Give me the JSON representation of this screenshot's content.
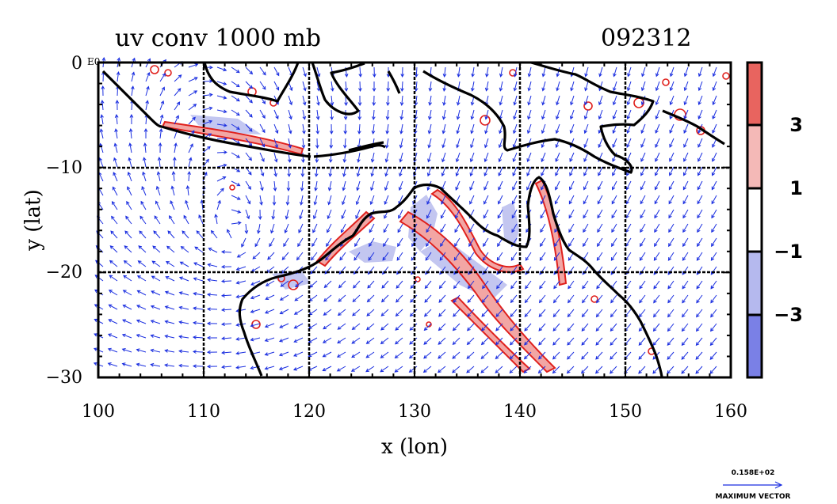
{
  "title": "uv conv 1000 mb",
  "date_label": "092312",
  "x_axis": {
    "label": "x (lon)",
    "min": 100,
    "max": 160,
    "ticks": [
      100,
      110,
      120,
      130,
      140,
      150,
      160
    ],
    "tick_labels": [
      "100",
      "110",
      "120",
      "130",
      "140",
      "150",
      "160"
    ]
  },
  "y_axis": {
    "label": "y (lat)",
    "min": -30,
    "max": 0,
    "ticks": [
      0,
      -10,
      -20,
      -30
    ],
    "tick_labels": [
      "0",
      "−10",
      "−20",
      "−30"
    ]
  },
  "corner_mark": "E0",
  "colorbar": {
    "labels": [
      "3",
      "1",
      "−1",
      "−3"
    ],
    "label_values": [
      3,
      1,
      -1,
      -3
    ],
    "bands": [
      {
        "range": [
          3,
          5
        ],
        "color": "#e8645f"
      },
      {
        "range": [
          1,
          3
        ],
        "color": "#f4b9b7"
      },
      {
        "range": [
          -1,
          1
        ],
        "color": "#ffffff"
      },
      {
        "range": [
          -3,
          -1
        ],
        "color": "#b5b9ee"
      },
      {
        "range": [
          -5,
          -3
        ],
        "color": "#7a80e6"
      }
    ]
  },
  "vector_key": {
    "magnitude_label": "0.158E+02",
    "caption": "MAXIMUM VECTOR"
  },
  "colors": {
    "coastline": "#000000",
    "vectors": "#1a2ee0",
    "contour_positive": "#e0201c",
    "contour_negative": "#2233dd",
    "shade_positive": "#f2a6a4",
    "shade_negative": "#b9bdee",
    "grid": "#000000"
  },
  "map_data": {
    "region": {
      "lon": [
        100,
        160
      ],
      "lat": [
        -30,
        0
      ]
    },
    "vector_field_center": {
      "lon": 113,
      "lat": -17
    }
  }
}
